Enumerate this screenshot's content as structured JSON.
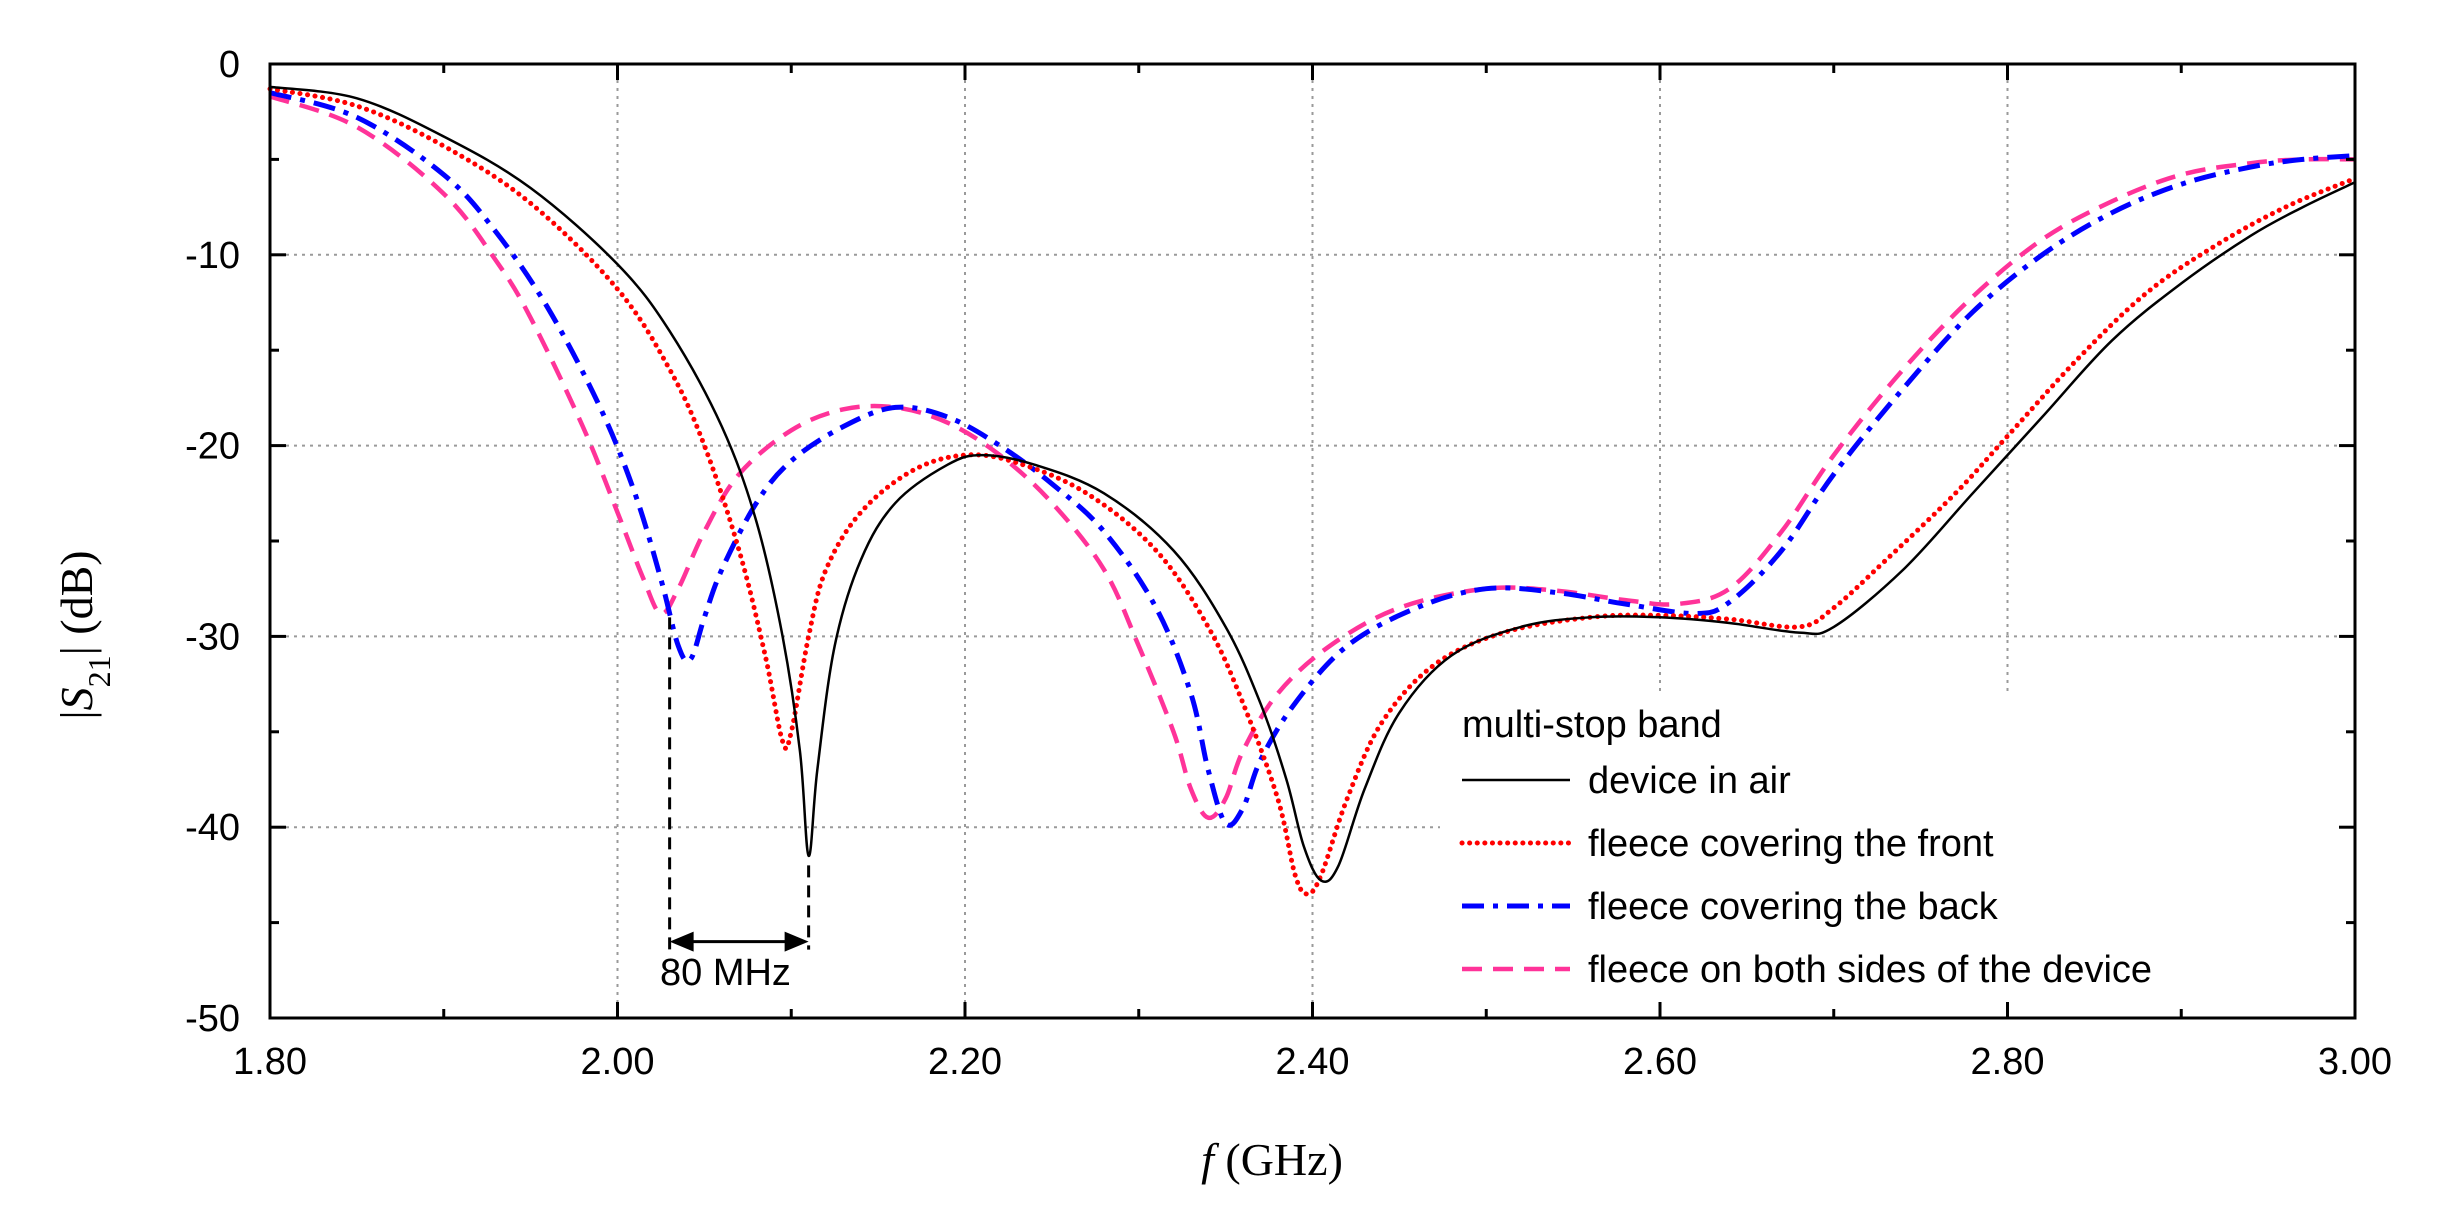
{
  "chart_data": {
    "type": "line",
    "title": "",
    "xlabel": {
      "italic": "f",
      "rest": " (GHz)"
    },
    "ylabel": {
      "pre": "|",
      "italic": "S",
      "sub": "21",
      "post": "| (dB)"
    },
    "xlim": [
      1.8,
      3.0
    ],
    "ylim": [
      -50,
      0
    ],
    "xticks": [
      1.8,
      2.0,
      2.2,
      2.4,
      2.6,
      2.8,
      3.0
    ],
    "xtick_labels": [
      "1.80",
      "2.00",
      "2.20",
      "2.40",
      "2.60",
      "2.80",
      "3.00"
    ],
    "yticks": [
      0,
      -10,
      -20,
      -30,
      -40,
      -50
    ],
    "ytick_labels": [
      "0",
      "-10",
      "-20",
      "-30",
      "-40",
      "-50"
    ],
    "grid": true,
    "legend": {
      "title": "multi-stop band",
      "placement": "bottom-right"
    },
    "annotation": {
      "label": "80 MHz",
      "x_start": 2.03,
      "x_end": 2.11,
      "y_arrow": -46,
      "y_ref_start": -29,
      "y_ref_end": -42
    },
    "series": [
      {
        "name": "device in air",
        "color": "#000000",
        "style": "solid",
        "points": [
          [
            1.8,
            -1.2
          ],
          [
            1.85,
            -1.8
          ],
          [
            1.9,
            -3.8
          ],
          [
            1.95,
            -6.5
          ],
          [
            2.0,
            -10.5
          ],
          [
            2.03,
            -14
          ],
          [
            2.06,
            -19
          ],
          [
            2.08,
            -24
          ],
          [
            2.095,
            -30
          ],
          [
            2.105,
            -36
          ],
          [
            2.11,
            -41.5
          ],
          [
            2.115,
            -37
          ],
          [
            2.125,
            -30.5
          ],
          [
            2.14,
            -26
          ],
          [
            2.16,
            -23
          ],
          [
            2.19,
            -21
          ],
          [
            2.21,
            -20.5
          ],
          [
            2.24,
            -21
          ],
          [
            2.28,
            -22.5
          ],
          [
            2.32,
            -25.5
          ],
          [
            2.35,
            -29.5
          ],
          [
            2.37,
            -33.5
          ],
          [
            2.385,
            -37.5
          ],
          [
            2.395,
            -41
          ],
          [
            2.405,
            -42.8
          ],
          [
            2.415,
            -42
          ],
          [
            2.43,
            -38
          ],
          [
            2.45,
            -34
          ],
          [
            2.48,
            -31
          ],
          [
            2.52,
            -29.5
          ],
          [
            2.56,
            -29
          ],
          [
            2.6,
            -29
          ],
          [
            2.64,
            -29.3
          ],
          [
            2.68,
            -29.8
          ],
          [
            2.7,
            -29.5
          ],
          [
            2.74,
            -26.5
          ],
          [
            2.78,
            -22.5
          ],
          [
            2.82,
            -18.5
          ],
          [
            2.86,
            -14.5
          ],
          [
            2.9,
            -11.5
          ],
          [
            2.94,
            -9
          ],
          [
            2.97,
            -7.5
          ],
          [
            3.0,
            -6.2
          ]
        ]
      },
      {
        "name": "fleece covering the front",
        "color": "#ff0000",
        "style": "dotted",
        "points": [
          [
            1.8,
            -1.3
          ],
          [
            1.85,
            -2.2
          ],
          [
            1.9,
            -4.3
          ],
          [
            1.95,
            -7.3
          ],
          [
            2.0,
            -11.8
          ],
          [
            2.03,
            -16
          ],
          [
            2.05,
            -20
          ],
          [
            2.07,
            -25.5
          ],
          [
            2.085,
            -31
          ],
          [
            2.095,
            -35.5
          ],
          [
            2.1,
            -35
          ],
          [
            2.11,
            -30
          ],
          [
            2.12,
            -26.5
          ],
          [
            2.14,
            -23.5
          ],
          [
            2.17,
            -21.3
          ],
          [
            2.2,
            -20.5
          ],
          [
            2.23,
            -20.9
          ],
          [
            2.27,
            -22.5
          ],
          [
            2.31,
            -25.5
          ],
          [
            2.34,
            -29.5
          ],
          [
            2.36,
            -33.5
          ],
          [
            2.38,
            -38.5
          ],
          [
            2.39,
            -42.5
          ],
          [
            2.397,
            -43.5
          ],
          [
            2.405,
            -42.5
          ],
          [
            2.42,
            -38.5
          ],
          [
            2.44,
            -34.5
          ],
          [
            2.47,
            -31.5
          ],
          [
            2.51,
            -29.8
          ],
          [
            2.56,
            -29
          ],
          [
            2.6,
            -28.9
          ],
          [
            2.64,
            -29.1
          ],
          [
            2.68,
            -29.5
          ],
          [
            2.7,
            -28.5
          ],
          [
            2.73,
            -26
          ],
          [
            2.77,
            -22.5
          ],
          [
            2.8,
            -19.5
          ],
          [
            2.84,
            -15.5
          ],
          [
            2.88,
            -12
          ],
          [
            2.92,
            -9.5
          ],
          [
            2.96,
            -7.5
          ],
          [
            3.0,
            -6
          ]
        ]
      },
      {
        "name": "fleece covering the back",
        "color": "#0000ff",
        "style": "dashdot",
        "points": [
          [
            1.8,
            -1.5
          ],
          [
            1.85,
            -2.8
          ],
          [
            1.9,
            -5.8
          ],
          [
            1.93,
            -8.8
          ],
          [
            1.96,
            -12.8
          ],
          [
            1.99,
            -18
          ],
          [
            2.01,
            -22.5
          ],
          [
            2.025,
            -27
          ],
          [
            2.035,
            -30.5
          ],
          [
            2.042,
            -31.2
          ],
          [
            2.05,
            -29
          ],
          [
            2.06,
            -26.5
          ],
          [
            2.08,
            -23
          ],
          [
            2.1,
            -20.8
          ],
          [
            2.13,
            -19
          ],
          [
            2.16,
            -18
          ],
          [
            2.19,
            -18.5
          ],
          [
            2.22,
            -20
          ],
          [
            2.25,
            -22
          ],
          [
            2.28,
            -24.5
          ],
          [
            2.31,
            -28.5
          ],
          [
            2.33,
            -33
          ],
          [
            2.34,
            -37
          ],
          [
            2.35,
            -39.8
          ],
          [
            2.36,
            -39
          ],
          [
            2.37,
            -36.5
          ],
          [
            2.39,
            -33.5
          ],
          [
            2.42,
            -30.5
          ],
          [
            2.46,
            -28.5
          ],
          [
            2.5,
            -27.5
          ],
          [
            2.54,
            -27.7
          ],
          [
            2.58,
            -28.3
          ],
          [
            2.62,
            -28.8
          ],
          [
            2.64,
            -28.2
          ],
          [
            2.67,
            -25.5
          ],
          [
            2.7,
            -21.5
          ],
          [
            2.74,
            -17
          ],
          [
            2.78,
            -13
          ],
          [
            2.82,
            -10
          ],
          [
            2.86,
            -7.8
          ],
          [
            2.9,
            -6.3
          ],
          [
            2.94,
            -5.4
          ],
          [
            2.97,
            -5
          ],
          [
            3.0,
            -4.8
          ]
        ]
      },
      {
        "name": "fleece on both sides of the device",
        "color": "#ff3399",
        "style": "dashed",
        "points": [
          [
            1.8,
            -1.7
          ],
          [
            1.85,
            -3.3
          ],
          [
            1.9,
            -6.8
          ],
          [
            1.93,
            -10.3
          ],
          [
            1.95,
            -13.3
          ],
          [
            1.98,
            -19
          ],
          [
            2.0,
            -23.5
          ],
          [
            2.015,
            -27
          ],
          [
            2.025,
            -28.8
          ],
          [
            2.035,
            -27.5
          ],
          [
            2.05,
            -24.5
          ],
          [
            2.07,
            -21.5
          ],
          [
            2.1,
            -19.2
          ],
          [
            2.13,
            -18.1
          ],
          [
            2.16,
            -18
          ],
          [
            2.19,
            -18.8
          ],
          [
            2.22,
            -20.5
          ],
          [
            2.25,
            -23
          ],
          [
            2.28,
            -26.5
          ],
          [
            2.3,
            -30.5
          ],
          [
            2.32,
            -35
          ],
          [
            2.33,
            -38
          ],
          [
            2.34,
            -39.5
          ],
          [
            2.35,
            -38.5
          ],
          [
            2.36,
            -36
          ],
          [
            2.38,
            -33
          ],
          [
            2.41,
            -30.5
          ],
          [
            2.45,
            -28.5
          ],
          [
            2.5,
            -27.5
          ],
          [
            2.54,
            -27.6
          ],
          [
            2.58,
            -28.1
          ],
          [
            2.61,
            -28.3
          ],
          [
            2.64,
            -27.5
          ],
          [
            2.67,
            -24.5
          ],
          [
            2.7,
            -20.5
          ],
          [
            2.74,
            -16
          ],
          [
            2.78,
            -12.2
          ],
          [
            2.82,
            -9.2
          ],
          [
            2.86,
            -7.2
          ],
          [
            2.9,
            -5.8
          ],
          [
            2.94,
            -5.2
          ],
          [
            2.97,
            -5
          ],
          [
            3.0,
            -5
          ]
        ]
      }
    ]
  }
}
